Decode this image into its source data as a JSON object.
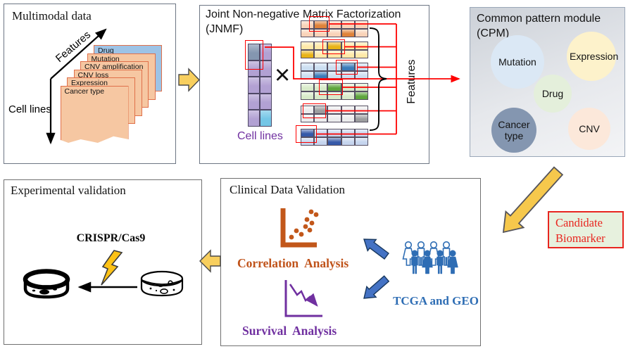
{
  "multimodal": {
    "title": "Multimodal data",
    "features_axis_label": "Features",
    "cell_lines_axis_label": "Cell lines",
    "sheets": [
      {
        "label": "Drug",
        "fill": "#9dc3e6"
      },
      {
        "label": "Mutation",
        "fill": "#f6c7a2"
      },
      {
        "label": "CNV amplification",
        "fill": "#f6c7a2"
      },
      {
        "label": "CNV loss",
        "fill": "#f6c7a2"
      },
      {
        "label": "Expression",
        "fill": "#f6c7a2"
      },
      {
        "label": "Cancer type",
        "fill": "#f6c7a2"
      }
    ]
  },
  "jnmf": {
    "title_line1": "Joint Non-negative Matrix Factorization",
    "title_line2": "(JNMF)",
    "multiply_symbol": "×",
    "cell_lines_label": "Cell lines",
    "features_label": "Features",
    "basis_matrix": {
      "rows": 5,
      "cols": 2,
      "base_color": "#b2a1d3",
      "special_cells": [
        {
          "r": 0,
          "c": 0,
          "color": "#8496b0"
        },
        {
          "r": 4,
          "c": 1,
          "color": "#74c6e6"
        }
      ]
    },
    "coefficient_matrices": [
      {
        "light": "#f9d0b4",
        "dark": "#dd7b2f",
        "dark_cells": [
          [
            0,
            1
          ],
          [
            1,
            3
          ]
        ]
      },
      {
        "light": "#ffe8a3",
        "dark": "#e7af0a",
        "dark_cells": [
          [
            0,
            2
          ],
          [
            1,
            0
          ]
        ]
      },
      {
        "light": "#c8dcf0",
        "dark": "#2f74b5",
        "dark_cells": [
          [
            0,
            3
          ],
          [
            1,
            1
          ]
        ]
      },
      {
        "light": "#d6e9c6",
        "dark": "#55a033",
        "dark_cells": [
          [
            0,
            2
          ],
          [
            1,
            4
          ]
        ]
      },
      {
        "light": "#ebebec",
        "dark": "#97989a",
        "dark_cells": [
          [
            0,
            1
          ],
          [
            1,
            4
          ]
        ]
      },
      {
        "light": "#c3d3ed",
        "dark": "#2b50a3",
        "dark_cells": [
          [
            0,
            0
          ],
          [
            1,
            2
          ]
        ]
      }
    ]
  },
  "cpm": {
    "title_line1": "Common pattern module",
    "title_line2": "(CPM)",
    "circles": [
      {
        "label": "Mutation",
        "fill": "#dbe8f5"
      },
      {
        "label": "Expression",
        "fill": "#fdf2cb"
      },
      {
        "label": "Drug",
        "fill": "#e4efdb"
      },
      {
        "label": "Cancer type",
        "fill": "#8496b0"
      },
      {
        "label": "CNV",
        "fill": "#fce8da"
      }
    ]
  },
  "candidate_biomarker": {
    "line1": "Candidate",
    "line2": "Biomarker",
    "text_color": "#e8251f",
    "bg_color": "#e7f1de",
    "border_color": "#e8251f"
  },
  "clinical": {
    "title": "Clinical Data Validation",
    "correlation_label": "Correlation  Analysis",
    "survival_label": "Survival  Analysis",
    "tcga_label": "TCGA and GEO",
    "correlation_color": "#c0531a",
    "survival_color": "#7030a0",
    "tcga_color": "#2e6db4"
  },
  "experimental": {
    "title": "Experimental validation",
    "crispr_label": "CRISPR/Cas9"
  },
  "icons": {
    "block_arrow_color": "#f8cf5e",
    "red_connector_color": "#fe0000",
    "blue_arrow_color": "#4472c4",
    "lightning_color": "#fec216",
    "people_icon": "crowd of patients",
    "petri_dish_filled_icon": "treated cell culture dish",
    "petri_dish_outline_icon": "cell culture dish",
    "scatter_plot_icon": "correlation scatter plot",
    "survival_curve_icon": "declining survival curve"
  }
}
